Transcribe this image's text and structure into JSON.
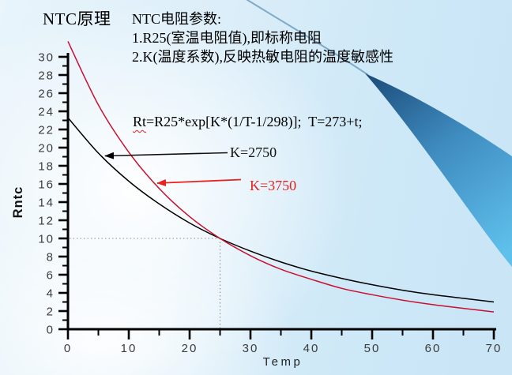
{
  "slide": {
    "title": "NTC原理",
    "params": {
      "heading": "NTC电阻参数:",
      "line1": "1.R25(室温电阻值),即标称电阻",
      "line2": "2.K(温度系数),反映热敏电阻的温度敏感性"
    },
    "formula": {
      "head": "Rt",
      "rest": "=R25*exp[K*(1/T-1/298)];  T=273+t;"
    },
    "annotations": {
      "k2750": "K=2750",
      "k3750": "K=3750"
    }
  },
  "colors": {
    "black_series": "#000000",
    "red_series": "#c8102e",
    "red_label": "#e62222",
    "axis": "#000000",
    "tick_text": "#3c3c3c",
    "dotted_guide": "#8c8c8c",
    "swoosh_dark": "#1d4e7c",
    "swoosh_mid": "#3f8cc0",
    "swoosh_light": "#5fc0ec",
    "background_blue": "#cde8f7"
  },
  "chart_data": {
    "type": "line",
    "title": "",
    "xlabel": "Temp",
    "ylabel": "Rntc",
    "xlim": [
      0,
      70
    ],
    "ylim": [
      0,
      30
    ],
    "xticks": [
      0,
      10,
      20,
      30,
      40,
      50,
      60,
      70
    ],
    "yticks": [
      0,
      2,
      4,
      6,
      8,
      10,
      12,
      14,
      16,
      18,
      20,
      22,
      24,
      26,
      28,
      30
    ],
    "grid": false,
    "legend_position": "inline-callouts",
    "x": [
      0,
      5,
      10,
      15,
      20,
      25,
      30,
      35,
      40,
      45,
      50,
      55,
      60,
      65,
      70
    ],
    "series": [
      {
        "name": "K=2750",
        "color": "#000000",
        "values": [
          23.3,
          19.4,
          16.3,
          13.8,
          11.7,
          10.0,
          8.6,
          7.4,
          6.4,
          5.6,
          4.9,
          4.3,
          3.8,
          3.4,
          3.0
        ]
      },
      {
        "name": "K=3750",
        "color": "#c8102e",
        "values": [
          31.7,
          24.7,
          19.5,
          15.5,
          12.4,
          10.0,
          8.1,
          6.6,
          5.5,
          4.5,
          3.8,
          3.2,
          2.7,
          2.3,
          1.9
        ]
      }
    ],
    "reference_point": {
      "x": 25,
      "y": 10
    }
  }
}
